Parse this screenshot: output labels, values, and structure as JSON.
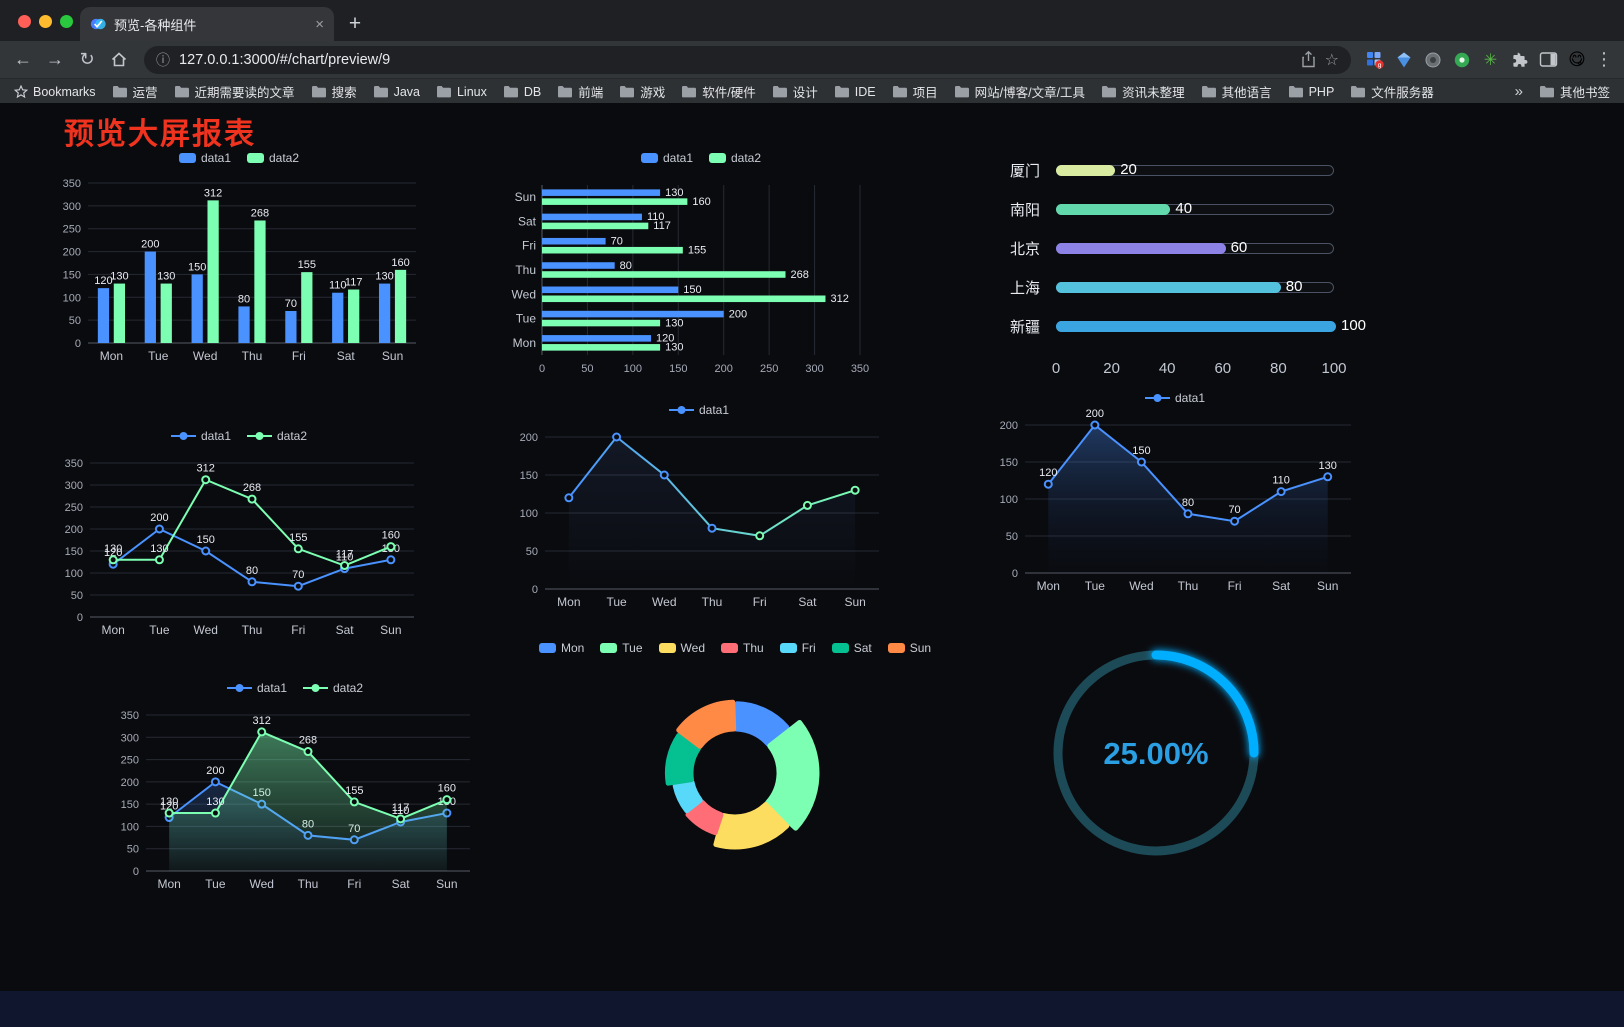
{
  "browser": {
    "tab_title": "预览-各种组件",
    "close_glyph": "×",
    "new_tab_glyph": "+",
    "url": "127.0.0.1:3000/#/chart/preview/9",
    "icons": {
      "back": "←",
      "forward": "→",
      "reload": "↻",
      "info": "ⓘ",
      "bookmark_star": "☆",
      "menu_dots": "⋮",
      "avatar": "😋",
      "pinwheel": "✳",
      "overflow": "»"
    },
    "bookmarks_title": "Bookmarks",
    "bookmarks": [
      "运营",
      "近期需要读的文章",
      "搜索",
      "Java",
      "Linux",
      "DB",
      "前端",
      "游戏",
      "软件/硬件",
      "设计",
      "IDE",
      "项目",
      "网站/博客/文章/工具",
      "资讯未整理",
      "其他语言",
      "PHP",
      "文件服务器"
    ],
    "other_bookmarks": "其他书签"
  },
  "page": {
    "title": "预览大屏报表",
    "title_color": "#f0331f"
  },
  "chart_data": [
    {
      "id": "grouped-bar",
      "kind": "bar",
      "type": "bar",
      "categories": [
        "Mon",
        "Tue",
        "Wed",
        "Thu",
        "Fri",
        "Sat",
        "Sun"
      ],
      "series": [
        {
          "name": "data1",
          "color": "#4992ff",
          "labels": true,
          "values": [
            120,
            200,
            150,
            80,
            70,
            110,
            130
          ]
        },
        {
          "name": "data2",
          "color": "#7cffb2",
          "labels": true,
          "values": [
            130,
            130,
            312,
            268,
            155,
            117,
            160
          ]
        }
      ],
      "ymax": 350,
      "ystep": 50
    },
    {
      "id": "grouped-hbar",
      "kind": "hbar",
      "type": "bar",
      "categories": [
        "Sun",
        "Sat",
        "Fri",
        "Thu",
        "Wed",
        "Tue",
        "Mon"
      ],
      "series": [
        {
          "name": "data1",
          "color": "#4992ff",
          "labels": true,
          "values": [
            130,
            110,
            70,
            80,
            150,
            200,
            120
          ]
        },
        {
          "name": "data2",
          "color": "#7cffb2",
          "labels": true,
          "values": [
            160,
            117,
            155,
            268,
            312,
            130,
            130
          ]
        }
      ],
      "xmax": 350,
      "xstep": 50
    },
    {
      "id": "progress-bars",
      "kind": "progress",
      "type": "bar",
      "items": [
        {
          "label": "厦门",
          "value": 20,
          "color": "#d8eba1"
        },
        {
          "label": "南阳",
          "value": 40,
          "color": "#62d9ad"
        },
        {
          "label": "北京",
          "value": 60,
          "color": "#8d82e6"
        },
        {
          "label": "上海",
          "value": 80,
          "color": "#55c2dd"
        },
        {
          "label": "新疆",
          "value": 100,
          "color": "#3aa5e0"
        }
      ],
      "max": 100,
      "ticks": [
        0,
        20,
        40,
        60,
        80,
        100
      ]
    },
    {
      "id": "line-two-series",
      "kind": "line",
      "type": "line",
      "categories": [
        "Mon",
        "Tue",
        "Wed",
        "Thu",
        "Fri",
        "Sat",
        "Sun"
      ],
      "series": [
        {
          "name": "data1",
          "color": "#4992ff",
          "labels": true,
          "values": [
            120,
            200,
            150,
            80,
            70,
            110,
            130
          ]
        },
        {
          "name": "data2",
          "color": "#7cffb2",
          "labels": true,
          "values": [
            130,
            130,
            312,
            268,
            155,
            117,
            160
          ]
        }
      ],
      "ymax": 350,
      "ystep": 50
    },
    {
      "id": "line-gradient",
      "kind": "line",
      "type": "line",
      "categories": [
        "Mon",
        "Tue",
        "Wed",
        "Thu",
        "Fri",
        "Sat",
        "Sun"
      ],
      "series": [
        {
          "name": "data1",
          "color": "#4992ff",
          "gradient": [
            "#4992ff",
            "#7cffb2"
          ],
          "area": [
            "rgba(90,140,230,0.10)",
            "rgba(90,140,230,0)"
          ],
          "values": [
            120,
            200,
            150,
            80,
            70,
            110,
            130
          ]
        }
      ],
      "ymax": 200,
      "ystep": 50
    },
    {
      "id": "line-area",
      "kind": "line",
      "type": "area",
      "categories": [
        "Mon",
        "Tue",
        "Wed",
        "Thu",
        "Fri",
        "Sat",
        "Sun"
      ],
      "series": [
        {
          "name": "data1",
          "color": "#4992ff",
          "labels": true,
          "area": [
            "rgba(73,146,255,0.35)",
            "rgba(20,35,70,0.04)"
          ],
          "values": [
            120,
            200,
            150,
            80,
            70,
            110,
            130
          ]
        }
      ],
      "ymax": 200,
      "ystep": 50
    },
    {
      "id": "line-two-area",
      "kind": "line",
      "type": "area",
      "categories": [
        "Mon",
        "Tue",
        "Wed",
        "Thu",
        "Fri",
        "Sat",
        "Sun"
      ],
      "series": [
        {
          "name": "data1",
          "color": "#4992ff",
          "labels": true,
          "area": [
            "rgba(73,146,255,0.22)",
            "rgba(73,146,255,0.02)"
          ],
          "values": [
            120,
            200,
            150,
            80,
            70,
            110,
            130
          ]
        },
        {
          "name": "data2",
          "color": "#7cffb2",
          "labels": true,
          "area": [
            "rgba(124,255,178,0.45)",
            "rgba(124,255,178,0.04)"
          ],
          "values": [
            130,
            130,
            312,
            268,
            155,
            117,
            160
          ]
        }
      ],
      "ymax": 350,
      "ystep": 50
    },
    {
      "id": "rose-pie",
      "kind": "pie",
      "type": "pie",
      "items": [
        {
          "name": "Mon",
          "value": 120,
          "color": "#4992ff"
        },
        {
          "name": "Tue",
          "value": 200,
          "color": "#7cffb2"
        },
        {
          "name": "Wed",
          "value": 150,
          "color": "#fddd60"
        },
        {
          "name": "Thu",
          "value": 80,
          "color": "#ff6e76"
        },
        {
          "name": "Fri",
          "value": 70,
          "color": "#58d9f9"
        },
        {
          "name": "Sat",
          "value": 110,
          "color": "#05c091"
        },
        {
          "name": "Sun",
          "value": 130,
          "color": "#ff8a45"
        }
      ]
    },
    {
      "id": "gauge",
      "kind": "gauge",
      "type": "pie",
      "value": 25,
      "label": "25.00%",
      "color": "#00aeff",
      "track": "#1d4a57",
      "text_color": "#2b9fe3"
    }
  ]
}
